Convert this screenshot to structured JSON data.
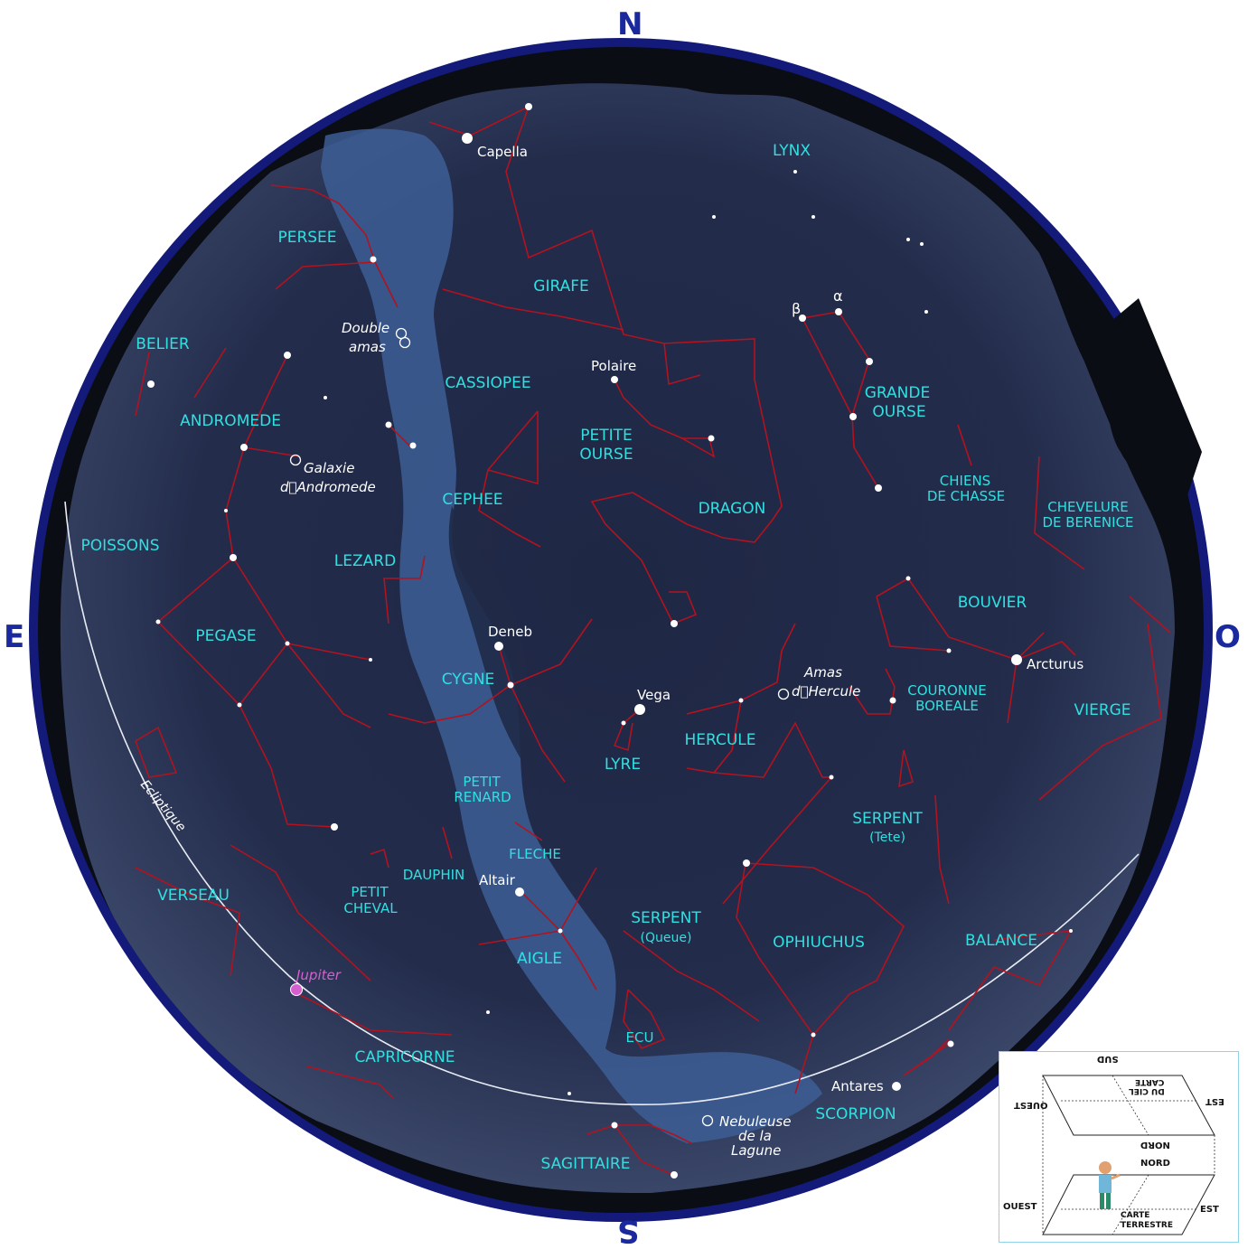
{
  "cardinals": {
    "north": "N",
    "south": "S",
    "east": "E",
    "west": "O"
  },
  "colors": {
    "sky": "#202a47",
    "milky_way": "#3d5e95",
    "constellation_lines": "#b3121f",
    "labels": "#30e0e0",
    "border": "#131a7a",
    "ecliptic": "#e8ecf4",
    "jupiter": "#d65fd0"
  },
  "constellations": [
    "PERSEE",
    "GIRAFE",
    "LYNX",
    "BELIER",
    "CASSIOPEE",
    "GRANDE",
    "OURSE",
    "ANDROMEDE",
    "PETITE",
    "OURSE",
    "CEPHEE",
    "CHIENS",
    "DE CHASSE",
    "CHEVELURE",
    "DE BERENICE",
    "DRAGON",
    "POISSONS",
    "LEZARD",
    "BOUVIER",
    "PEGASE",
    "CYGNE",
    "COURONNE",
    "BOREALE",
    "VIERGE",
    "HERCULE",
    "LYRE",
    "PETIT",
    "RENARD",
    "SERPENT",
    "(Tete)",
    "FLECHE",
    "DAUPHIN",
    "VERSEAU",
    "PETIT",
    "CHEVAL",
    "SERPENT",
    "(Queue)",
    "OPHIUCHUS",
    "BALANCE",
    "AIGLE",
    "ECU",
    "CAPRICORNE",
    "SCORPION",
    "SAGITTAIRE"
  ],
  "stars": [
    "Capella",
    "Polaire",
    "Deneb",
    "Vega",
    "Arcturus",
    "Altair",
    "Antares"
  ],
  "greek": [
    "β",
    "α"
  ],
  "objects": [
    "Double",
    "amas",
    "Galaxie",
    "d\u0000Andromede",
    "Amas",
    "d\u0000Hercule",
    "Nebuleuse",
    "de la",
    "Lagune"
  ],
  "planets": [
    "Jupiter"
  ],
  "ecliptic_label": "Ecliptique",
  "legend": {
    "sud": "SUD",
    "carte_du_ciel_1": "CARTE",
    "carte_du_ciel_2": "DU CIEL",
    "ouest_top": "OUEST",
    "est_top": "EST",
    "nord_top": "NORD",
    "nord_bottom": "NORD",
    "ouest_bottom": "OUEST",
    "est_bottom": "EST",
    "carte_terrestre_1": "CARTE",
    "carte_terrestre_2": "TERRESTRE"
  }
}
